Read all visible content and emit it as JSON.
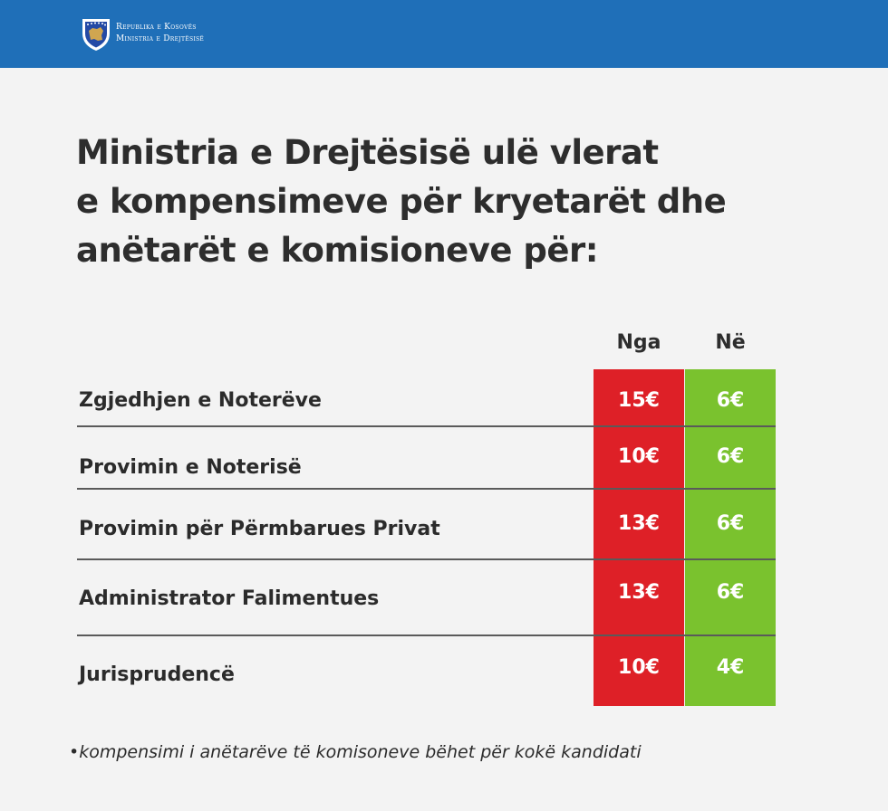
{
  "header": {
    "org_line1": "Republika e Kosovës",
    "org_line2": "Ministria e Drejtësisë",
    "bar_color": "#1f6fb8"
  },
  "headline": {
    "line1": "Ministria e Drejtësisë ulë vlerat",
    "line2": "e kompensimeve për kryetarët dhe",
    "line3": "anëtarët e komisioneve për:"
  },
  "table": {
    "col_from": "Nga",
    "col_to": "Në",
    "from_color": "#de2027",
    "to_color": "#7ac22e",
    "rows": [
      {
        "label": "Zgjedhjen e Noterëve",
        "from": "15€",
        "to": "6€"
      },
      {
        "label": "Provimin e Noterisë",
        "from": "10€",
        "to": "6€"
      },
      {
        "label": "Provimin për Përmbarues Privat",
        "from": "13€",
        "to": "6€"
      },
      {
        "label": "Administrator Falimentues",
        "from": "13€",
        "to": "6€"
      },
      {
        "label": "Jurisprudencë",
        "from": "10€",
        "to": "4€"
      }
    ]
  },
  "footnote": "•kompensimi i anëtarëve të komisoneve bëhet për kokë kandidati"
}
